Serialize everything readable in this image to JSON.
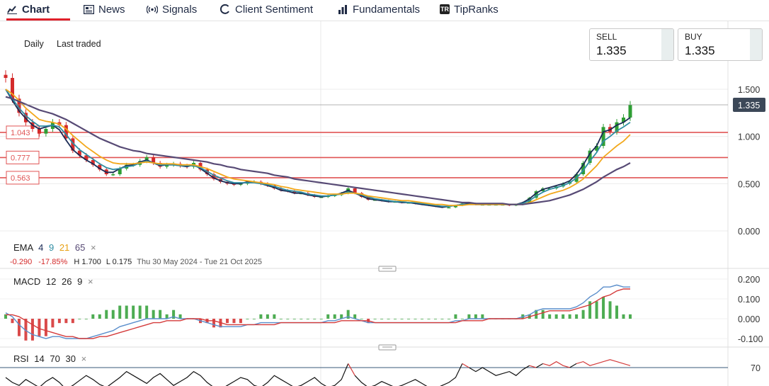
{
  "tabs": [
    {
      "label": "Chart",
      "icon": "chart-icon",
      "active": true
    },
    {
      "label": "News",
      "icon": "news-icon",
      "active": false
    },
    {
      "label": "Signals",
      "icon": "signals-icon",
      "active": false
    },
    {
      "label": "Client Sentiment",
      "icon": "sentiment-icon",
      "active": false
    },
    {
      "label": "Fundamentals",
      "icon": "fundamentals-icon",
      "active": false
    },
    {
      "label": "TipRanks",
      "icon": "tipranks-icon",
      "badge": "TR",
      "active": false
    }
  ],
  "toolbar": {
    "interval": "Daily",
    "price_type": "Last traded"
  },
  "quote": {
    "sell_label": "SELL",
    "sell_value": "1.335",
    "buy_label": "BUY",
    "buy_value": "1.335"
  },
  "legend": {
    "ema": {
      "label": "EMA",
      "periods": [
        "4",
        "9",
        "21",
        "65"
      ],
      "close": "×"
    },
    "macd": {
      "label": "MACD",
      "periods": [
        "12",
        "26",
        "9"
      ],
      "close": "×"
    },
    "rsi": {
      "label": "RSI",
      "periods": [
        "14",
        "70",
        "30"
      ],
      "close": "×"
    }
  },
  "stats": {
    "change": "-0.290",
    "change_pct": "-17.85%",
    "high": "H 1.700",
    "low": "L 0.175",
    "range": "Thu 30 May 2024 - Tue 21 Oct 2025"
  },
  "colors": {
    "up": "#2e9e34",
    "down": "#d42a2a",
    "ema4": "#1a2a55",
    "ema9": "#2f8da2",
    "ema21": "#f2a81c",
    "ema65": "#574a75",
    "hline": "#e05454",
    "accent": "#e0212b",
    "macd": "#5a8ecb",
    "signal": "#d43b3b"
  },
  "chart_data": [
    {
      "type": "candlestick",
      "title": "",
      "xlabel": "",
      "ylabel": "",
      "x_range": [
        "Thu 30 May 2024",
        "Tue 21 Oct 2025"
      ],
      "ylim": [
        0,
        1.6
      ],
      "yticks": [
        "1.500",
        "1.000",
        "0.500",
        "0.000"
      ],
      "last_price": 1.335,
      "last_price_label": "1.335",
      "price_lines": [
        {
          "value": 1.043,
          "label": "1.043"
        },
        {
          "value": 0.777,
          "label": "0.777"
        },
        {
          "value": 0.563,
          "label": "0.563"
        }
      ],
      "close": [
        1.62,
        1.4,
        1.25,
        1.15,
        1.08,
        1.03,
        1.08,
        1.15,
        1.12,
        0.98,
        0.85,
        0.8,
        0.75,
        0.7,
        0.65,
        0.6,
        0.6,
        0.66,
        0.7,
        0.7,
        0.74,
        0.78,
        0.72,
        0.68,
        0.7,
        0.71,
        0.69,
        0.68,
        0.72,
        0.65,
        0.6,
        0.55,
        0.52,
        0.5,
        0.49,
        0.5,
        0.52,
        0.52,
        0.5,
        0.48,
        0.45,
        0.43,
        0.42,
        0.4,
        0.4,
        0.38,
        0.36,
        0.36,
        0.37,
        0.38,
        0.4,
        0.45,
        0.4,
        0.36,
        0.33,
        0.33,
        0.32,
        0.31,
        0.31,
        0.3,
        0.3,
        0.29,
        0.28,
        0.27,
        0.26,
        0.25,
        0.25,
        0.27,
        0.29,
        0.29,
        0.28,
        0.28,
        0.28,
        0.28,
        0.28,
        0.27,
        0.28,
        0.3,
        0.35,
        0.42,
        0.45,
        0.45,
        0.47,
        0.5,
        0.52,
        0.6,
        0.72,
        0.85,
        0.9,
        1.1,
        1.05,
        1.15,
        1.2,
        1.335
      ],
      "series": [
        {
          "name": "EMA 4",
          "values": [
            1.5,
            1.38,
            1.27,
            1.19,
            1.12,
            1.08,
            1.1,
            1.12,
            1.07,
            0.96,
            0.86,
            0.8,
            0.75,
            0.71,
            0.66,
            0.62,
            0.62,
            0.66,
            0.69,
            0.7,
            0.73,
            0.75,
            0.72,
            0.69,
            0.7,
            0.7,
            0.69,
            0.68,
            0.7,
            0.66,
            0.61,
            0.56,
            0.53,
            0.51,
            0.5,
            0.5,
            0.52,
            0.52,
            0.5,
            0.48,
            0.46,
            0.43,
            0.42,
            0.4,
            0.4,
            0.38,
            0.37,
            0.36,
            0.37,
            0.38,
            0.4,
            0.43,
            0.4,
            0.37,
            0.34,
            0.33,
            0.32,
            0.31,
            0.31,
            0.3,
            0.3,
            0.29,
            0.28,
            0.27,
            0.26,
            0.25,
            0.26,
            0.27,
            0.28,
            0.29,
            0.28,
            0.28,
            0.28,
            0.28,
            0.28,
            0.28,
            0.28,
            0.3,
            0.34,
            0.4,
            0.44,
            0.46,
            0.48,
            0.5,
            0.53,
            0.6,
            0.7,
            0.82,
            0.9,
            1.05,
            1.07,
            1.12,
            1.15,
            1.2
          ]
        },
        {
          "name": "EMA 9",
          "values": [
            1.5,
            1.4,
            1.3,
            1.22,
            1.16,
            1.11,
            1.11,
            1.12,
            1.1,
            1.02,
            0.93,
            0.86,
            0.81,
            0.76,
            0.71,
            0.67,
            0.65,
            0.66,
            0.68,
            0.69,
            0.72,
            0.74,
            0.72,
            0.7,
            0.7,
            0.7,
            0.69,
            0.69,
            0.69,
            0.67,
            0.63,
            0.59,
            0.56,
            0.53,
            0.51,
            0.51,
            0.51,
            0.51,
            0.5,
            0.49,
            0.47,
            0.45,
            0.43,
            0.42,
            0.41,
            0.39,
            0.38,
            0.37,
            0.37,
            0.38,
            0.39,
            0.41,
            0.4,
            0.38,
            0.36,
            0.34,
            0.33,
            0.32,
            0.31,
            0.31,
            0.3,
            0.3,
            0.29,
            0.28,
            0.27,
            0.26,
            0.26,
            0.27,
            0.28,
            0.28,
            0.28,
            0.28,
            0.28,
            0.28,
            0.28,
            0.28,
            0.28,
            0.29,
            0.32,
            0.37,
            0.41,
            0.44,
            0.46,
            0.48,
            0.51,
            0.56,
            0.64,
            0.74,
            0.83,
            0.95,
            1.0,
            1.06,
            1.1,
            1.15
          ]
        },
        {
          "name": "EMA 21",
          "values": [
            1.5,
            1.45,
            1.38,
            1.3,
            1.24,
            1.18,
            1.16,
            1.15,
            1.13,
            1.08,
            1.01,
            0.95,
            0.89,
            0.84,
            0.79,
            0.75,
            0.72,
            0.71,
            0.71,
            0.71,
            0.72,
            0.73,
            0.72,
            0.71,
            0.71,
            0.71,
            0.7,
            0.7,
            0.7,
            0.68,
            0.66,
            0.63,
            0.6,
            0.57,
            0.55,
            0.54,
            0.53,
            0.52,
            0.51,
            0.5,
            0.49,
            0.47,
            0.46,
            0.44,
            0.43,
            0.42,
            0.41,
            0.4,
            0.39,
            0.39,
            0.39,
            0.4,
            0.4,
            0.39,
            0.37,
            0.36,
            0.35,
            0.34,
            0.33,
            0.32,
            0.32,
            0.31,
            0.3,
            0.29,
            0.28,
            0.28,
            0.27,
            0.27,
            0.27,
            0.28,
            0.28,
            0.28,
            0.28,
            0.28,
            0.28,
            0.28,
            0.28,
            0.28,
            0.3,
            0.33,
            0.36,
            0.39,
            0.41,
            0.43,
            0.46,
            0.5,
            0.55,
            0.62,
            0.69,
            0.78,
            0.84,
            0.9,
            0.95,
            1.02
          ]
        },
        {
          "name": "EMA 65",
          "values": [
            1.42,
            1.4,
            1.37,
            1.34,
            1.31,
            1.28,
            1.26,
            1.24,
            1.21,
            1.18,
            1.14,
            1.1,
            1.06,
            1.02,
            0.98,
            0.95,
            0.92,
            0.89,
            0.87,
            0.85,
            0.84,
            0.82,
            0.81,
            0.8,
            0.79,
            0.78,
            0.77,
            0.76,
            0.75,
            0.74,
            0.73,
            0.71,
            0.7,
            0.68,
            0.67,
            0.65,
            0.64,
            0.63,
            0.62,
            0.61,
            0.59,
            0.58,
            0.57,
            0.55,
            0.54,
            0.53,
            0.52,
            0.51,
            0.5,
            0.49,
            0.48,
            0.47,
            0.46,
            0.45,
            0.44,
            0.43,
            0.42,
            0.41,
            0.4,
            0.39,
            0.38,
            0.37,
            0.36,
            0.35,
            0.34,
            0.33,
            0.32,
            0.31,
            0.3,
            0.3,
            0.29,
            0.29,
            0.29,
            0.29,
            0.29,
            0.28,
            0.28,
            0.28,
            0.29,
            0.3,
            0.31,
            0.32,
            0.34,
            0.36,
            0.38,
            0.41,
            0.44,
            0.48,
            0.52,
            0.57,
            0.61,
            0.65,
            0.68,
            0.72
          ]
        }
      ]
    },
    {
      "type": "line",
      "title": "",
      "ylim": [
        -0.15,
        0.22
      ],
      "yticks": [
        "0.200",
        "0.100",
        "0.000",
        "-0.100"
      ],
      "series": [
        {
          "name": "MACD",
          "values": [
            0.03,
            0.01,
            -0.03,
            -0.06,
            -0.08,
            -0.09,
            -0.1,
            -0.09,
            -0.09,
            -0.1,
            -0.1,
            -0.1,
            -0.1,
            -0.09,
            -0.08,
            -0.07,
            -0.06,
            -0.04,
            -0.03,
            -0.02,
            -0.01,
            0.0,
            0.0,
            0.0,
            0.0,
            0.01,
            0.0,
            0.0,
            0.0,
            -0.01,
            -0.02,
            -0.03,
            -0.04,
            -0.04,
            -0.04,
            -0.04,
            -0.03,
            -0.03,
            -0.02,
            -0.02,
            -0.02,
            -0.02,
            -0.02,
            -0.02,
            -0.02,
            -0.02,
            -0.02,
            -0.02,
            -0.01,
            -0.01,
            0.0,
            0.01,
            0.0,
            -0.01,
            -0.02,
            -0.02,
            -0.02,
            -0.02,
            -0.02,
            -0.02,
            -0.02,
            -0.02,
            -0.02,
            -0.02,
            -0.02,
            -0.02,
            -0.02,
            -0.01,
            -0.01,
            0.0,
            0.0,
            0.0,
            0.0,
            0.0,
            0.0,
            0.0,
            0.0,
            0.01,
            0.02,
            0.04,
            0.05,
            0.05,
            0.05,
            0.05,
            0.05,
            0.06,
            0.08,
            0.11,
            0.13,
            0.16,
            0.16,
            0.17,
            0.16,
            0.16
          ]
        },
        {
          "name": "Signal",
          "values": [
            0.02,
            0.02,
            0.01,
            -0.01,
            -0.03,
            -0.05,
            -0.06,
            -0.07,
            -0.08,
            -0.09,
            -0.09,
            -0.1,
            -0.1,
            -0.1,
            -0.09,
            -0.09,
            -0.08,
            -0.07,
            -0.06,
            -0.05,
            -0.04,
            -0.03,
            -0.02,
            -0.02,
            -0.01,
            -0.01,
            -0.01,
            0.0,
            0.0,
            0.0,
            -0.01,
            -0.01,
            -0.02,
            -0.03,
            -0.03,
            -0.03,
            -0.03,
            -0.03,
            -0.03,
            -0.03,
            -0.03,
            -0.02,
            -0.02,
            -0.02,
            -0.02,
            -0.02,
            -0.02,
            -0.02,
            -0.02,
            -0.02,
            -0.01,
            -0.01,
            -0.01,
            -0.01,
            -0.01,
            -0.02,
            -0.02,
            -0.02,
            -0.02,
            -0.02,
            -0.02,
            -0.02,
            -0.02,
            -0.02,
            -0.02,
            -0.02,
            -0.02,
            -0.02,
            -0.01,
            -0.01,
            -0.01,
            -0.01,
            0.0,
            0.0,
            0.0,
            0.0,
            0.0,
            0.0,
            0.01,
            0.02,
            0.03,
            0.04,
            0.04,
            0.04,
            0.04,
            0.05,
            0.06,
            0.07,
            0.09,
            0.11,
            0.12,
            0.14,
            0.15,
            0.15
          ]
        }
      ]
    },
    {
      "type": "line",
      "title": "",
      "ylim": [
        50,
        80
      ],
      "yticks": [
        "70"
      ],
      "series": [
        {
          "name": "RSI",
          "values": [
            60,
            55,
            52,
            58,
            54,
            50,
            56,
            60,
            55,
            48,
            52,
            57,
            62,
            58,
            53,
            50,
            55,
            60,
            66,
            62,
            58,
            54,
            60,
            64,
            58,
            52,
            56,
            60,
            66,
            62,
            55,
            50,
            48,
            52,
            56,
            60,
            58,
            52,
            50,
            55,
            62,
            58,
            54,
            50,
            52,
            56,
            60,
            54,
            50,
            52,
            58,
            74,
            62,
            55,
            50,
            52,
            56,
            53,
            50,
            52,
            55,
            58,
            54,
            50,
            49,
            52,
            55,
            60,
            74,
            70,
            66,
            70,
            66,
            62,
            64,
            66,
            62,
            68,
            72,
            70,
            74,
            72,
            76,
            72,
            70,
            74,
            76,
            72,
            74,
            76,
            78,
            76,
            74,
            72
          ]
        }
      ]
    }
  ]
}
